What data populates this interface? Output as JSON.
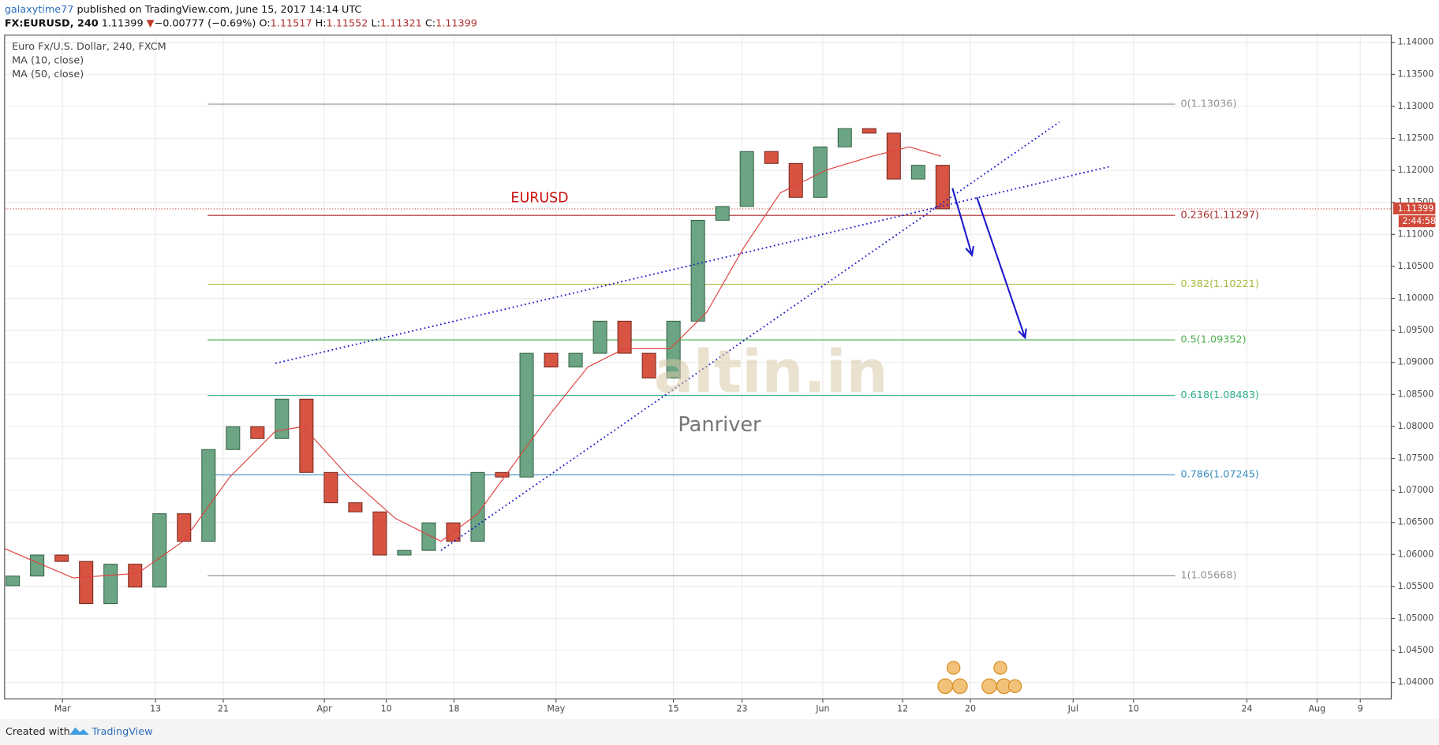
{
  "chart_data": {
    "type": "candlestick",
    "header": {
      "author": "galaxytime77",
      "published": "published on TradingView.com, June 15, 2017 14:14 UTC"
    },
    "symbol_line": {
      "symbol": "FX:EURUSD, 240",
      "last": "1.11399",
      "arrow": "▼",
      "change": "−0.00777 (−0.69%)",
      "open_label": "O:",
      "open": "1.11517",
      "high_label": "H:",
      "high": "1.11552",
      "low_label": "L:",
      "low": "1.11321",
      "close_label": "C:",
      "close": "1.11399"
    },
    "title": "Euro Fx/U.S. Dollar, 240, FXCM",
    "indicators": [
      "MA (10, close)",
      "MA (50, close)"
    ],
    "annotation": "EURUSD",
    "watermark": "altin.in",
    "watermark_author": "Panriver",
    "footer": {
      "created": "Created with",
      "brand": "TradingView"
    },
    "xlim": [
      0,
      170
    ],
    "xticks": [
      {
        "value": 7.1,
        "label": "Mar"
      },
      {
        "value": 18.5,
        "label": "13"
      },
      {
        "value": 26.8,
        "label": "21"
      },
      {
        "value": 39.2,
        "label": "Apr"
      },
      {
        "value": 46.8,
        "label": "10"
      },
      {
        "value": 55.1,
        "label": "18"
      },
      {
        "value": 67.6,
        "label": "May"
      },
      {
        "value": 82.0,
        "label": "15"
      },
      {
        "value": 90.4,
        "label": "23"
      },
      {
        "value": 100.3,
        "label": "Jun"
      },
      {
        "value": 110.1,
        "label": "12"
      },
      {
        "value": 118.4,
        "label": "20"
      },
      {
        "value": 131.0,
        "label": "Jul"
      },
      {
        "value": 138.4,
        "label": "10"
      },
      {
        "value": 152.3,
        "label": "24"
      },
      {
        "value": 160.9,
        "label": "Aug"
      },
      {
        "value": 166.2,
        "label": "9"
      }
    ],
    "ylim": [
      1.03742,
      1.14115
    ],
    "yticks": [
      {
        "value": 1.04,
        "label": "1.04000"
      },
      {
        "value": 1.045,
        "label": "1.04500"
      },
      {
        "value": 1.05,
        "label": "1.05000"
      },
      {
        "value": 1.055,
        "label": "1.05500"
      },
      {
        "value": 1.06,
        "label": "1.06000"
      },
      {
        "value": 1.065,
        "label": "1.06500"
      },
      {
        "value": 1.07,
        "label": "1.07000"
      },
      {
        "value": 1.075,
        "label": "1.07500"
      },
      {
        "value": 1.08,
        "label": "1.08000"
      },
      {
        "value": 1.085,
        "label": "1.08500"
      },
      {
        "value": 1.09,
        "label": "1.09000"
      },
      {
        "value": 1.095,
        "label": "1.09500"
      },
      {
        "value": 1.1,
        "label": "1.10000"
      },
      {
        "value": 1.105,
        "label": "1.10500"
      },
      {
        "value": 1.11,
        "label": "1.11000"
      },
      {
        "value": 1.115,
        "label": "1.11500"
      },
      {
        "value": 1.12,
        "label": "1.12000"
      },
      {
        "value": 1.125,
        "label": "1.12500"
      },
      {
        "value": 1.13,
        "label": "1.13000"
      },
      {
        "value": 1.135,
        "label": "1.13500"
      },
      {
        "value": 1.14,
        "label": "1.14000"
      }
    ],
    "grid": true,
    "up_color": "#6ba583",
    "down_color": "#d75442",
    "x": [
      1,
      4,
      7,
      10,
      13,
      16,
      19,
      22,
      25,
      28,
      31,
      34,
      37,
      40,
      43,
      46,
      49,
      52,
      55,
      58,
      61,
      64,
      67,
      70,
      73,
      76,
      79,
      82,
      85,
      88,
      91,
      94,
      97,
      100,
      103,
      106,
      109,
      112,
      115
    ],
    "open": [
      1.05512,
      1.05662,
      1.05991,
      1.05891,
      1.05232,
      1.05848,
      1.0549,
      1.06636,
      1.06206,
      1.07639,
      1.07997,
      1.07811,
      1.08427,
      1.07281,
      1.06808,
      1.06665,
      1.05991,
      1.06063,
      1.06493,
      1.06206,
      1.07281,
      1.07209,
      1.09143,
      1.08928,
      1.09143,
      1.09645,
      1.09143,
      1.08756,
      1.09645,
      1.11221,
      1.11436,
      1.12295,
      1.12109,
      1.11579,
      1.12367,
      1.12653,
      1.12582,
      1.11865,
      1.1208
    ],
    "close": [
      1.05662,
      1.05991,
      1.05891,
      1.05232,
      1.05848,
      1.0549,
      1.06636,
      1.06206,
      1.07639,
      1.07997,
      1.07811,
      1.08427,
      1.07281,
      1.06808,
      1.06665,
      1.05991,
      1.06063,
      1.06493,
      1.06206,
      1.07281,
      1.07209,
      1.09143,
      1.08928,
      1.09143,
      1.09645,
      1.09143,
      1.08756,
      1.09645,
      1.11221,
      1.11436,
      1.12295,
      1.12109,
      1.11579,
      1.12367,
      1.12653,
      1.12582,
      1.11865,
      1.1208,
      1.11399
    ],
    "ma50": {
      "color": "#e04040",
      "x": [
        0,
        8.4,
        16.3,
        21.9,
        27.6,
        33.2,
        36.6,
        42.2,
        47.9,
        53.5,
        58.0,
        62.5,
        67.0,
        71.5,
        76.0,
        81.6,
        86.1,
        90.6,
        95.1,
        100.8,
        106.4,
        110.9,
        114.8
      ],
      "values": [
        1.06092,
        1.05633,
        1.05705,
        1.06206,
        1.07209,
        1.07926,
        1.07997,
        1.07209,
        1.06564,
        1.06206,
        1.06636,
        1.07424,
        1.08212,
        1.08928,
        1.09215,
        1.09215,
        1.09788,
        1.10791,
        1.1165,
        1.12009,
        1.12223,
        1.12367,
        1.12223
      ]
    },
    "fib_xrange": [
      24.9,
      143.5
    ],
    "fib_levels": [
      {
        "label": "0(1.13036)",
        "value": 1.13036,
        "color": "#909090"
      },
      {
        "label": "0.236(1.11297)",
        "value": 1.11297,
        "color": "#a52a2a"
      },
      {
        "label": "0.382(1.10221)",
        "value": 1.10221,
        "color": "#a9b93a"
      },
      {
        "label": "0.5(1.09352)",
        "value": 1.09352,
        "color": "#4caf50"
      },
      {
        "label": "0.618(1.08483)",
        "value": 1.08483,
        "color": "#2bb08c"
      },
      {
        "label": "0.786(1.07245)",
        "value": 1.07245,
        "color": "#3a8fc4"
      },
      {
        "label": "1(1.05668)",
        "value": 1.05668,
        "color": "#909090"
      }
    ],
    "trendlines": [
      {
        "x": [
          33.2,
          135.7
        ],
        "y": [
          1.08986,
          1.12066
        ]
      },
      {
        "x": [
          53.5,
          129.3
        ],
        "y": [
          1.06063,
          1.12754
        ]
      }
    ],
    "arrows": [
      {
        "x": [
          116.2,
          118.6
        ],
        "y": [
          1.11722,
          1.10676
        ]
      },
      {
        "x": [
          119.2,
          125.1
        ],
        "y": [
          1.11579,
          1.09387
        ]
      }
    ],
    "line_color": "#1a1acc",
    "last_price": {
      "value": 1.11399,
      "label": "1.11399"
    },
    "countdown": "2:44:58"
  }
}
